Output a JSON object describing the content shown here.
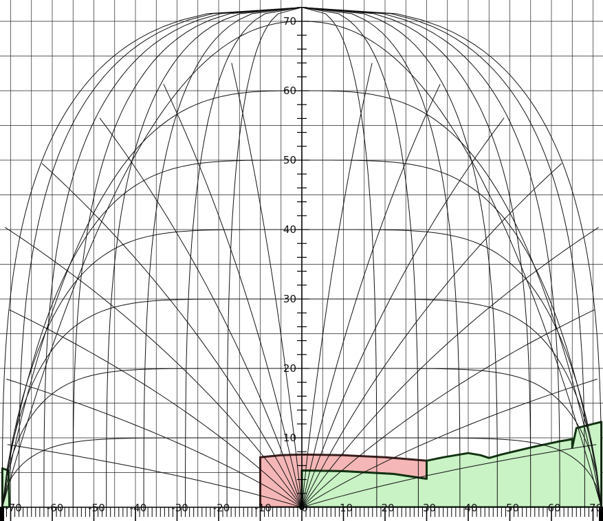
{
  "chart_data": {
    "type": "polar-diagram",
    "title": "",
    "x_axis": {
      "label": "",
      "range": [
        -72,
        72
      ],
      "tick_labels": [
        "-70",
        "-60",
        "-50",
        "-40",
        "-30",
        "-20",
        "-10",
        "0",
        "10",
        "20",
        "30",
        "40",
        "50",
        "60",
        "70"
      ],
      "tick_values": [
        -70,
        -60,
        -50,
        -40,
        -30,
        -20,
        -10,
        0,
        10,
        20,
        30,
        40,
        50,
        60,
        70
      ]
    },
    "y_axis": {
      "label": "",
      "range": [
        0,
        72
      ],
      "tick_labels": [
        "10",
        "20",
        "30",
        "40",
        "50",
        "60",
        "70"
      ],
      "tick_values": [
        10,
        20,
        30,
        40,
        50,
        60,
        70
      ]
    },
    "grid": true,
    "projection": "equidistant-style sky diagram (altitude circles + azimuth lines)",
    "altitude_circles": [
      0,
      10,
      20,
      30,
      40,
      50,
      60,
      70
    ],
    "azimuth_lines_deg": [
      0,
      10,
      20,
      30,
      40,
      50,
      60,
      70,
      80,
      90
    ],
    "regions": [
      {
        "name": "red obstruction",
        "color": "#f4b6b6",
        "outline": "#3a1d1d",
        "points": [
          [
            -10,
            0
          ],
          [
            -10,
            7.2
          ],
          [
            -5,
            7.5
          ],
          [
            0,
            7.6
          ],
          [
            10,
            7.5
          ],
          [
            20,
            7.2
          ],
          [
            30,
            6.7
          ],
          [
            30,
            4.1
          ],
          [
            22,
            4.8
          ],
          [
            10,
            5.2
          ],
          [
            0,
            5.3
          ],
          [
            0,
            0
          ]
        ]
      },
      {
        "name": "green obstruction right",
        "color": "#c9f2c5",
        "outline": "#123312",
        "points": [
          [
            0,
            0
          ],
          [
            0,
            5.3
          ],
          [
            10,
            5.2
          ],
          [
            22,
            4.8
          ],
          [
            30,
            4.1
          ],
          [
            30,
            6.7
          ],
          [
            34,
            7.2
          ],
          [
            40,
            7.8
          ],
          [
            43,
            7.5
          ],
          [
            45,
            7.1
          ],
          [
            48,
            7.6
          ],
          [
            55,
            8.6
          ],
          [
            62,
            9.5
          ],
          [
            65,
            9.8
          ],
          [
            65,
            8.6
          ],
          [
            66,
            11.4
          ],
          [
            70,
            12.0
          ],
          [
            72,
            12.3
          ],
          [
            72,
            0
          ]
        ]
      },
      {
        "name": "green obstruction left",
        "color": "#c9f2c5",
        "outline": "#123312",
        "points": [
          [
            -72,
            0
          ],
          [
            -72,
            5.6
          ],
          [
            -70.5,
            5.3
          ],
          [
            -70.3,
            0
          ]
        ]
      }
    ]
  }
}
